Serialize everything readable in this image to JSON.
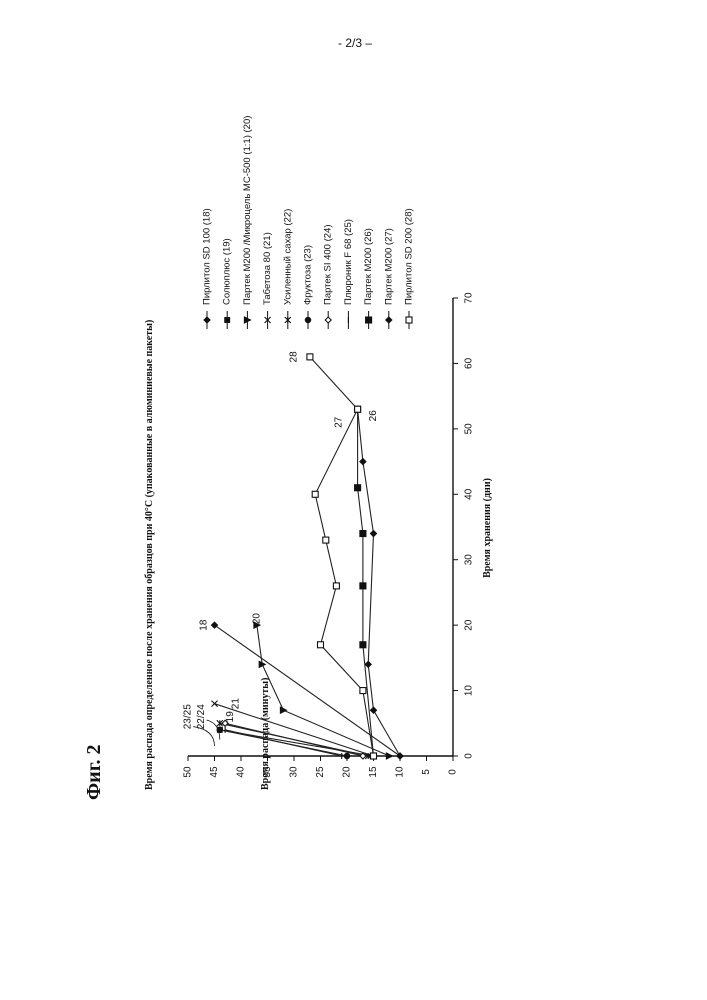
{
  "page": {
    "number": "- 2/3 –"
  },
  "figure": {
    "label": "Фиг. 2"
  },
  "chart_data": {
    "type": "line",
    "orientation": "rotated-90-ccw",
    "title": "Время распада определенное после хранения образцов при 40°С (упакованные в алюминиевые пакеты)",
    "xlabel": "Время хранения (дни)",
    "ylabel": "Время распада (минуты)",
    "xlim": [
      0,
      70
    ],
    "ylim": [
      0,
      50
    ],
    "xticks": [
      0,
      10,
      20,
      30,
      40,
      50,
      60,
      70
    ],
    "yticks": [
      0,
      5,
      10,
      15,
      20,
      25,
      30,
      35,
      40,
      45,
      50
    ],
    "legend_position": "right",
    "series": [
      {
        "name": "Пирлитол SD 100 (18)",
        "marker": "diamond",
        "label": "18",
        "points": [
          [
            0,
            10
          ],
          [
            20,
            45
          ]
        ]
      },
      {
        "name": "Солюплюс (19)",
        "marker": "square",
        "label": "19",
        "points": [
          [
            0,
            15
          ],
          [
            4,
            44
          ]
        ]
      },
      {
        "name": "Партек М200 /Микроцель МС-500 (1:1) (20)",
        "marker": "triangle",
        "label": "20",
        "points": [
          [
            0,
            12
          ],
          [
            7,
            32
          ],
          [
            14,
            36
          ],
          [
            20,
            37
          ]
        ]
      },
      {
        "name": "Табетоза 80 (21)",
        "marker": "x",
        "label": "21",
        "points": [
          [
            0,
            15
          ],
          [
            8,
            45
          ]
        ]
      },
      {
        "name": "Усиленный сахар (22)",
        "marker": "star",
        "label": "22/24",
        "points": [
          [
            0,
            16
          ],
          [
            5,
            44
          ]
        ]
      },
      {
        "name": "Фруктоза (23)",
        "marker": "circle",
        "label": "23/25",
        "points": [
          [
            0,
            20
          ],
          [
            4,
            44
          ]
        ]
      },
      {
        "name": "Партек SI 400 (24)",
        "marker": "open-diamond",
        "label": "22/24",
        "points": [
          [
            0,
            17
          ],
          [
            5,
            43
          ]
        ]
      },
      {
        "name": "Плюроник F 68 (25)",
        "marker": "dash",
        "label": "23/25",
        "points": [
          [
            0,
            21
          ],
          [
            4,
            43
          ]
        ]
      },
      {
        "name": "Партек М200 (26)",
        "marker": "filled-square",
        "label": "26",
        "points": [
          [
            0,
            15
          ],
          [
            17,
            17
          ],
          [
            26,
            17
          ],
          [
            34,
            17
          ],
          [
            41,
            18
          ],
          [
            53,
            18
          ]
        ]
      },
      {
        "name": "Партек М200 (27)",
        "marker": "diamond",
        "label": "27",
        "points": [
          [
            0,
            10
          ],
          [
            7,
            15
          ],
          [
            14,
            16
          ],
          [
            34,
            15
          ],
          [
            45,
            17
          ],
          [
            53,
            18
          ]
        ]
      },
      {
        "name": "Пирлитол SD 200 (28)",
        "marker": "open-square",
        "label": "28",
        "points": [
          [
            0,
            15
          ],
          [
            10,
            17
          ],
          [
            17,
            25
          ],
          [
            26,
            22
          ],
          [
            33,
            24
          ],
          [
            40,
            26
          ],
          [
            53,
            18
          ],
          [
            61,
            27
          ]
        ]
      }
    ]
  }
}
